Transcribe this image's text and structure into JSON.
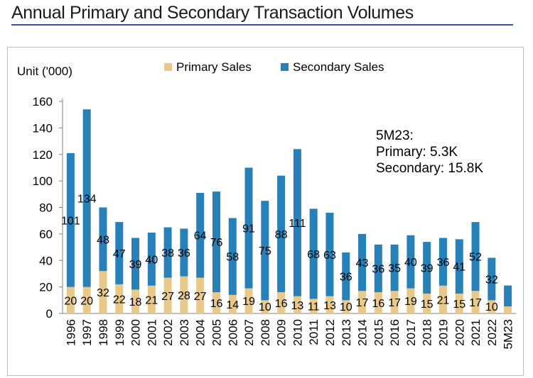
{
  "page": {
    "title": "Annual Primary and Secondary Transaction Volumes"
  },
  "colors": {
    "primary": "#E8C98A",
    "secondary": "#2780B8",
    "title_rule": "#2f5597"
  },
  "annotation": {
    "line1": "5M23:",
    "line2": "Primary: 5.3K",
    "line3": "Secondary: 15.8K"
  },
  "chart_data": {
    "type": "bar",
    "stacked": true,
    "title": "",
    "ylabel": "Unit ('000)",
    "xlabel": "",
    "ylim": [
      0,
      160
    ],
    "yticks": [
      0,
      20,
      40,
      60,
      80,
      100,
      120,
      140,
      160
    ],
    "legend_position": "top",
    "categories": [
      "1996",
      "1997",
      "1998",
      "1999",
      "2000",
      "2001",
      "2002",
      "2003",
      "2004",
      "2005",
      "2006",
      "2007",
      "2008",
      "2009",
      "2010",
      "2011",
      "2012",
      "2013",
      "2014",
      "2015",
      "2016",
      "2017",
      "2018",
      "2019",
      "2020",
      "2021",
      "2022",
      "5M23"
    ],
    "series": [
      {
        "name": "Primary Sales",
        "values": [
          20,
          20,
          32,
          22,
          18,
          21,
          27,
          28,
          27,
          16,
          14,
          19,
          10,
          16,
          13,
          11,
          13,
          10,
          17,
          16,
          17,
          19,
          15,
          21,
          15,
          17,
          10,
          5.3
        ],
        "labels": [
          "20",
          "20",
          "32",
          "22",
          "18",
          "21",
          "27",
          "28",
          "27",
          "16",
          "14",
          "19",
          "10",
          "16",
          "13",
          "11",
          "13",
          "10",
          "17",
          "16",
          "17",
          "19",
          "15",
          "21",
          "15",
          "17",
          "10",
          ""
        ]
      },
      {
        "name": "Secondary Sales",
        "values": [
          101,
          134,
          48,
          47,
          39,
          40,
          38,
          36,
          64,
          76,
          58,
          91,
          75,
          88,
          111,
          68,
          63,
          36,
          43,
          36,
          35,
          40,
          39,
          36,
          41,
          52,
          32,
          15.8
        ],
        "labels": [
          "101",
          "134",
          "48",
          "47",
          "39",
          "40",
          "38",
          "36",
          "64",
          "76",
          "58",
          "91",
          "75",
          "88",
          "111",
          "68",
          "63",
          "36",
          "43",
          "36",
          "35",
          "40",
          "39",
          "36",
          "41",
          "52",
          "32",
          ""
        ]
      }
    ]
  }
}
